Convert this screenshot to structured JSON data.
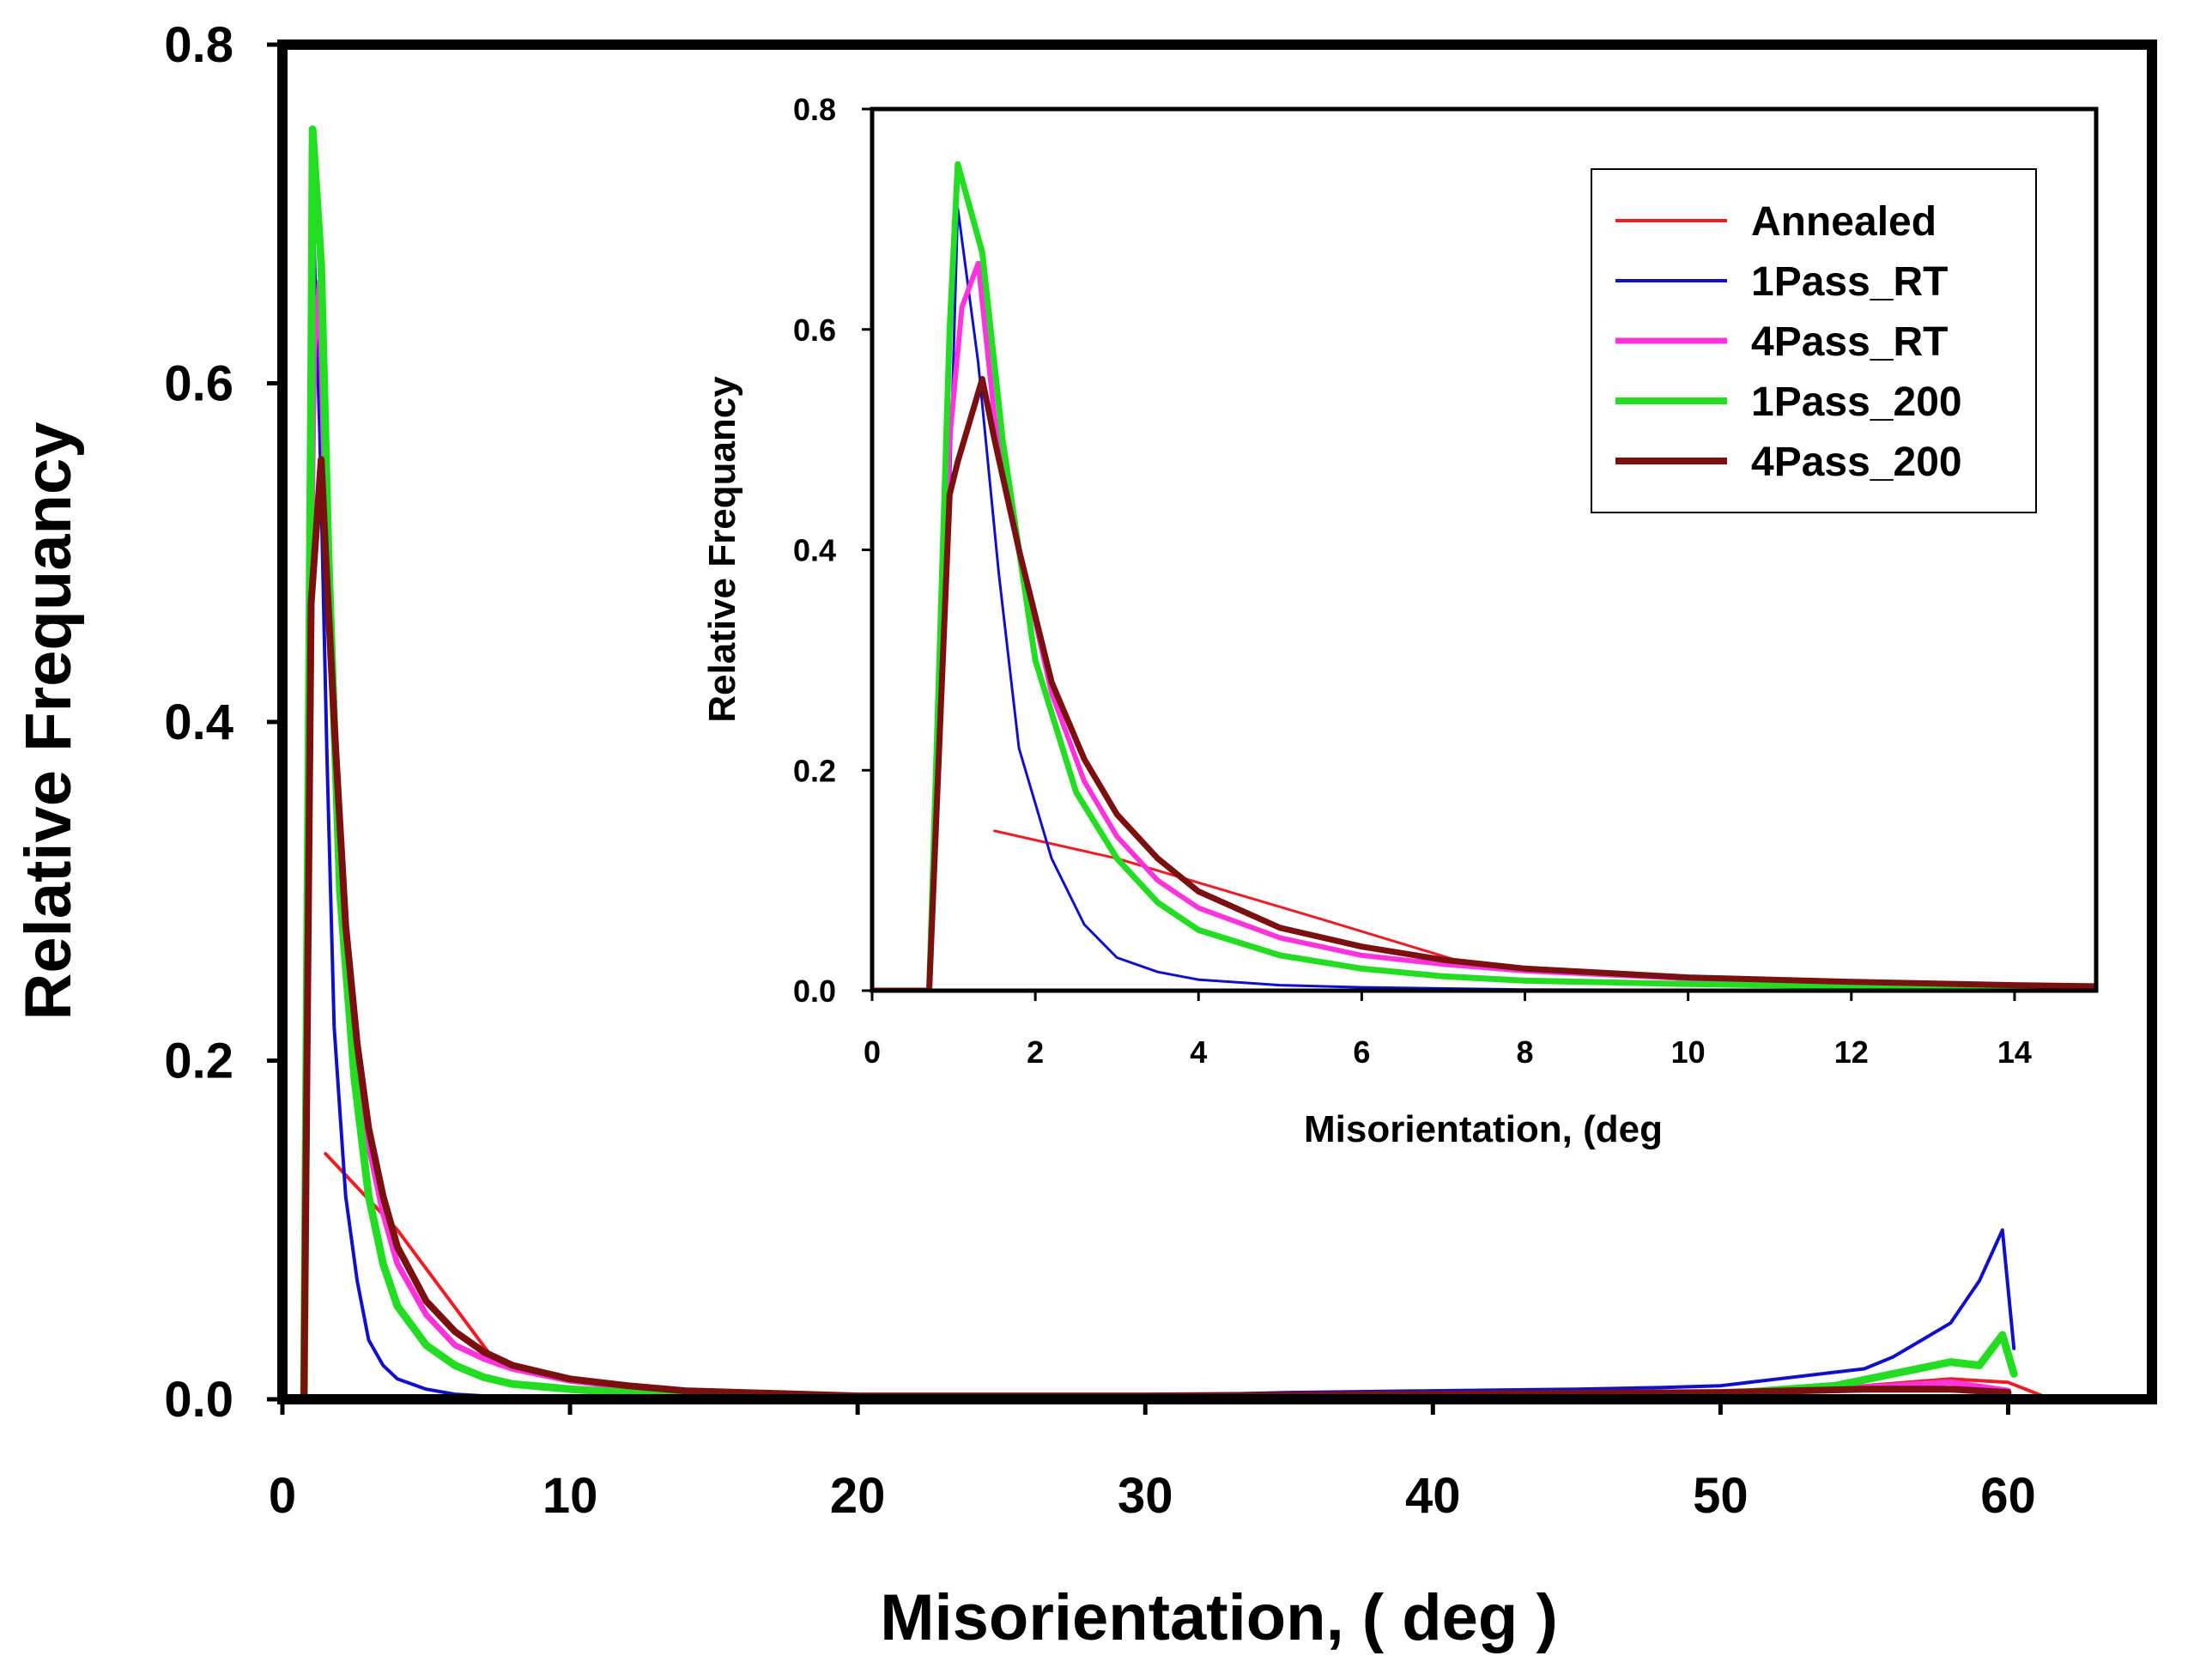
{
  "chart_data": [
    {
      "type": "line",
      "title": "",
      "xlabel": "Misorientation, ( deg )",
      "ylabel": "Relative Frequancy",
      "xlim": [
        0,
        65
      ],
      "ylim": [
        0,
        0.8
      ],
      "x_ticks": [
        0,
        10,
        20,
        30,
        40,
        50,
        60
      ],
      "x_tick_labels": [
        "0",
        "10",
        "20",
        "30",
        "40",
        "50",
        "60"
      ],
      "y_ticks": [
        0,
        0.2,
        0.4,
        0.6,
        0.8
      ],
      "y_tick_labels": [
        "0.0",
        "0.2",
        "0.4",
        "0.6",
        "0.8"
      ],
      "grid": false,
      "series": [
        {
          "name": "Annealed",
          "color": "#ee1c25",
          "points": [
            [
              1.5,
              0.145
            ],
            [
              4,
              0.1
            ],
            [
              7.5,
              0.02
            ],
            [
              10,
              0.012
            ],
            [
              15,
              0.004
            ],
            [
              20,
              0.002
            ],
            [
              30,
              0.002
            ],
            [
              40,
              0.003
            ],
            [
              50,
              0.004
            ],
            [
              55,
              0.008
            ],
            [
              58,
              0.012
            ],
            [
              60,
              0.01
            ],
            [
              61.5,
              0.0
            ]
          ]
        },
        {
          "name": "1Pass_RT",
          "color": "#1010cc",
          "points": [
            [
              0.5,
              0
            ],
            [
              0.75,
              0
            ],
            [
              1.05,
              0.71
            ],
            [
              1.3,
              0.57
            ],
            [
              1.55,
              0.38
            ],
            [
              1.8,
              0.22
            ],
            [
              2.2,
              0.12
            ],
            [
              2.6,
              0.07
            ],
            [
              3,
              0.035
            ],
            [
              3.5,
              0.02
            ],
            [
              4,
              0.012
            ],
            [
              5,
              0.006
            ],
            [
              6,
              0.003
            ],
            [
              8,
              0.001
            ],
            [
              15,
              0.0
            ],
            [
              25,
              0.0
            ],
            [
              30,
              0.002
            ],
            [
              35,
              0.004
            ],
            [
              40,
              0.005
            ],
            [
              45,
              0.006
            ],
            [
              48,
              0.007
            ],
            [
              50,
              0.008
            ],
            [
              52,
              0.012
            ],
            [
              54,
              0.016
            ],
            [
              55,
              0.018
            ],
            [
              56,
              0.025
            ],
            [
              57,
              0.035
            ],
            [
              58,
              0.045
            ],
            [
              59,
              0.07
            ],
            [
              59.8,
              0.1
            ],
            [
              60.2,
              0.03
            ]
          ]
        },
        {
          "name": "4Pass_RT",
          "color": "#ff33dd",
          "points": [
            [
              0.5,
              0
            ],
            [
              0.75,
              0
            ],
            [
              1.0,
              0.5
            ],
            [
              1.1,
              0.62
            ],
            [
              1.3,
              0.66
            ],
            [
              1.5,
              0.52
            ],
            [
              1.8,
              0.4
            ],
            [
              2.2,
              0.28
            ],
            [
              2.6,
              0.2
            ],
            [
              3,
              0.15
            ],
            [
              3.5,
              0.11
            ],
            [
              4,
              0.08
            ],
            [
              5,
              0.05
            ],
            [
              6,
              0.032
            ],
            [
              7,
              0.024
            ],
            [
              8,
              0.018
            ],
            [
              10,
              0.011
            ],
            [
              12,
              0.007
            ],
            [
              14,
              0.004
            ],
            [
              20,
              0.002
            ],
            [
              30,
              0.002
            ],
            [
              40,
              0.003
            ],
            [
              50,
              0.004
            ],
            [
              55,
              0.007
            ],
            [
              58,
              0.01
            ],
            [
              60,
              0.005
            ]
          ]
        },
        {
          "name": "1Pass_200",
          "color": "#22dd22",
          "points": [
            [
              0.5,
              0
            ],
            [
              0.75,
              0
            ],
            [
              1.0,
              0.6
            ],
            [
              1.05,
              0.75
            ],
            [
              1.35,
              0.67
            ],
            [
              1.6,
              0.5
            ],
            [
              2,
              0.3
            ],
            [
              2.5,
              0.19
            ],
            [
              3,
              0.12
            ],
            [
              3.5,
              0.08
            ],
            [
              4,
              0.055
            ],
            [
              5,
              0.032
            ],
            [
              6,
              0.02
            ],
            [
              7,
              0.013
            ],
            [
              8,
              0.009
            ],
            [
              10,
              0.006
            ],
            [
              12,
              0.004
            ],
            [
              15,
              0.002
            ],
            [
              20,
              0.001
            ],
            [
              30,
              0.001
            ],
            [
              40,
              0.002
            ],
            [
              50,
              0.003
            ],
            [
              54,
              0.008
            ],
            [
              56,
              0.015
            ],
            [
              58,
              0.022
            ],
            [
              59,
              0.02
            ],
            [
              59.8,
              0.038
            ],
            [
              60.2,
              0.015
            ]
          ]
        },
        {
          "name": "4Pass_200",
          "color": "#7a1010",
          "points": [
            [
              0.5,
              0
            ],
            [
              0.75,
              0
            ],
            [
              1.0,
              0.47
            ],
            [
              1.35,
              0.555
            ],
            [
              1.5,
              0.5
            ],
            [
              1.8,
              0.4
            ],
            [
              2.2,
              0.28
            ],
            [
              2.6,
              0.21
            ],
            [
              3,
              0.16
            ],
            [
              3.5,
              0.12
            ],
            [
              4,
              0.09
            ],
            [
              5,
              0.058
            ],
            [
              6,
              0.04
            ],
            [
              7,
              0.028
            ],
            [
              8,
              0.02
            ],
            [
              10,
              0.012
            ],
            [
              12,
              0.008
            ],
            [
              14,
              0.005
            ],
            [
              20,
              0.002
            ],
            [
              30,
              0.002
            ],
            [
              40,
              0.003
            ],
            [
              50,
              0.004
            ],
            [
              55,
              0.006
            ],
            [
              58,
              0.006
            ],
            [
              60,
              0.004
            ]
          ]
        }
      ]
    },
    {
      "type": "line",
      "title": "",
      "xlabel": "Misorientation,  (deg",
      "ylabel": "Relative Frequancy",
      "xlim": [
        0,
        15
      ],
      "ylim": [
        0,
        0.8
      ],
      "x_ticks": [
        0,
        2,
        4,
        6,
        8,
        10,
        12,
        14
      ],
      "x_tick_labels": [
        "0",
        "2",
        "4",
        "6",
        "8",
        "10",
        "12",
        "14"
      ],
      "y_ticks": [
        0,
        0.2,
        0.4,
        0.6,
        0.8
      ],
      "y_tick_labels": [
        "0.0",
        "0.2",
        "0.4",
        "0.6",
        "0.8"
      ],
      "grid": false,
      "legend": {
        "position": "top-right",
        "entries": [
          {
            "label": "Annealed",
            "color": "#ee1c25"
          },
          {
            "label": "1Pass_RT",
            "color": "#1010cc"
          },
          {
            "label": "4Pass_RT",
            "color": "#ff33dd"
          },
          {
            "label": "1Pass_200",
            "color": "#22dd22"
          },
          {
            "label": "4Pass_200",
            "color": "#7a1010"
          }
        ]
      },
      "series": [
        {
          "name": "Annealed",
          "color": "#ee1c25",
          "points": [
            [
              1.5,
              0.145
            ],
            [
              3,
              0.12
            ],
            [
              5.5,
              0.065
            ],
            [
              7.5,
              0.02
            ],
            [
              9,
              0.015
            ],
            [
              11,
              0.008
            ],
            [
              13,
              0.005
            ],
            [
              15,
              0.003
            ]
          ]
        },
        {
          "name": "1Pass_RT",
          "color": "#1010cc",
          "points": [
            [
              0,
              0
            ],
            [
              0.7,
              0
            ],
            [
              0.95,
              0.45
            ],
            [
              1.05,
              0.71
            ],
            [
              1.3,
              0.57
            ],
            [
              1.55,
              0.38
            ],
            [
              1.8,
              0.22
            ],
            [
              2.2,
              0.12
            ],
            [
              2.6,
              0.06
            ],
            [
              3,
              0.03
            ],
            [
              3.5,
              0.017
            ],
            [
              4,
              0.01
            ],
            [
              5,
              0.005
            ],
            [
              6,
              0.003
            ],
            [
              8,
              0.001
            ],
            [
              15,
              0.0
            ]
          ]
        },
        {
          "name": "4Pass_RT",
          "color": "#ff33dd",
          "points": [
            [
              0,
              0
            ],
            [
              0.7,
              0
            ],
            [
              0.95,
              0.5
            ],
            [
              1.1,
              0.62
            ],
            [
              1.3,
              0.66
            ],
            [
              1.5,
              0.52
            ],
            [
              1.8,
              0.4
            ],
            [
              2.2,
              0.27
            ],
            [
              2.6,
              0.19
            ],
            [
              3,
              0.14
            ],
            [
              3.5,
              0.1
            ],
            [
              4,
              0.075
            ],
            [
              5,
              0.048
            ],
            [
              6,
              0.032
            ],
            [
              7,
              0.024
            ],
            [
              8,
              0.018
            ],
            [
              10,
              0.011
            ],
            [
              12,
              0.007
            ],
            [
              14,
              0.004
            ],
            [
              15,
              0.003
            ]
          ]
        },
        {
          "name": "1Pass_200",
          "color": "#22dd22",
          "points": [
            [
              0,
              0
            ],
            [
              0.7,
              0
            ],
            [
              0.95,
              0.6
            ],
            [
              1.05,
              0.75
            ],
            [
              1.35,
              0.67
            ],
            [
              1.6,
              0.5
            ],
            [
              2,
              0.3
            ],
            [
              2.5,
              0.18
            ],
            [
              3,
              0.12
            ],
            [
              3.5,
              0.08
            ],
            [
              4,
              0.055
            ],
            [
              5,
              0.032
            ],
            [
              6,
              0.02
            ],
            [
              7,
              0.013
            ],
            [
              8,
              0.009
            ],
            [
              10,
              0.006
            ],
            [
              12,
              0.004
            ],
            [
              15,
              0.002
            ]
          ]
        },
        {
          "name": "4Pass_200",
          "color": "#7a1010",
          "points": [
            [
              0,
              0
            ],
            [
              0.7,
              0
            ],
            [
              0.95,
              0.45
            ],
            [
              1.05,
              0.48
            ],
            [
              1.35,
              0.555
            ],
            [
              1.5,
              0.5
            ],
            [
              1.8,
              0.4
            ],
            [
              2.2,
              0.28
            ],
            [
              2.6,
              0.21
            ],
            [
              3,
              0.16
            ],
            [
              3.5,
              0.12
            ],
            [
              4,
              0.09
            ],
            [
              5,
              0.057
            ],
            [
              6,
              0.04
            ],
            [
              7,
              0.028
            ],
            [
              8,
              0.02
            ],
            [
              10,
              0.012
            ],
            [
              12,
              0.008
            ],
            [
              14,
              0.005
            ],
            [
              15,
              0.004
            ]
          ]
        }
      ]
    }
  ]
}
